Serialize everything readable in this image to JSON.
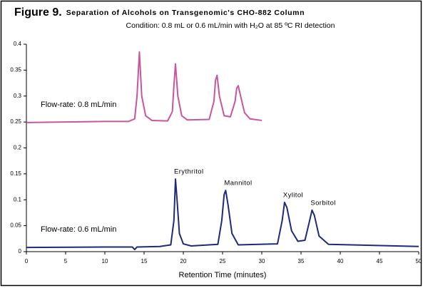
{
  "chart_data": {
    "type": "line",
    "figure_label": "Figure 9.",
    "title": "Separation of Alcohols on Transgenomic's CHO-882 Column",
    "subtitle": "Condition: 0.8 mL or 0.6 mL/min with H₂O at 85 ºC RI detection",
    "x_label": "Retention Time (minutes)",
    "xlim": [
      0,
      50
    ],
    "xticks": [
      0,
      5,
      10,
      15,
      20,
      25,
      30,
      35,
      40,
      45,
      50
    ],
    "ylim": [
      0,
      0.4
    ],
    "yticks": [
      0,
      0.05,
      0.1,
      0.15,
      0.2,
      0.25,
      0.3,
      0.35,
      0.4
    ],
    "grid": false,
    "series": [
      {
        "name": "Flow-rate: 0.8 mL/min",
        "color": "#c8559e",
        "x": [
          0,
          5,
          10,
          13.0,
          13.8,
          14.1,
          14.4,
          14.7,
          15.2,
          16,
          18.0,
          18.6,
          18.8,
          19.0,
          19.3,
          19.8,
          20.5,
          23.3,
          23.9,
          24.1,
          24.3,
          24.6,
          25.2,
          26.0,
          26.6,
          26.8,
          27.0,
          27.3,
          27.8,
          28.5,
          30
        ],
        "values": [
          0.249,
          0.25,
          0.251,
          0.251,
          0.256,
          0.3,
          0.385,
          0.3,
          0.262,
          0.253,
          0.252,
          0.27,
          0.32,
          0.362,
          0.3,
          0.262,
          0.254,
          0.255,
          0.29,
          0.33,
          0.34,
          0.3,
          0.262,
          0.26,
          0.29,
          0.315,
          0.32,
          0.3,
          0.268,
          0.256,
          0.253
        ]
      },
      {
        "name": "Flow-rate: 0.6 mL/min",
        "color": "#1f2a7a",
        "x": [
          0,
          10,
          13.5,
          13.8,
          14.1,
          17,
          18.4,
          18.8,
          19.0,
          19.2,
          19.5,
          20.0,
          21,
          24.4,
          24.9,
          25.2,
          25.4,
          25.7,
          26.2,
          27,
          32.0,
          32.6,
          32.9,
          33.2,
          33.8,
          34.6,
          35.5,
          36.1,
          36.4,
          36.7,
          37.3,
          38.5,
          50
        ],
        "values": [
          0.008,
          0.009,
          0.009,
          0.004,
          0.009,
          0.01,
          0.013,
          0.06,
          0.14,
          0.1,
          0.035,
          0.015,
          0.011,
          0.014,
          0.06,
          0.11,
          0.118,
          0.09,
          0.035,
          0.013,
          0.015,
          0.06,
          0.095,
          0.085,
          0.04,
          0.02,
          0.022,
          0.06,
          0.08,
          0.07,
          0.03,
          0.014,
          0.01
        ]
      }
    ],
    "peak_labels": [
      "Erythritol",
      "Mannitol",
      "Xylitol",
      "Sorbitol"
    ]
  }
}
